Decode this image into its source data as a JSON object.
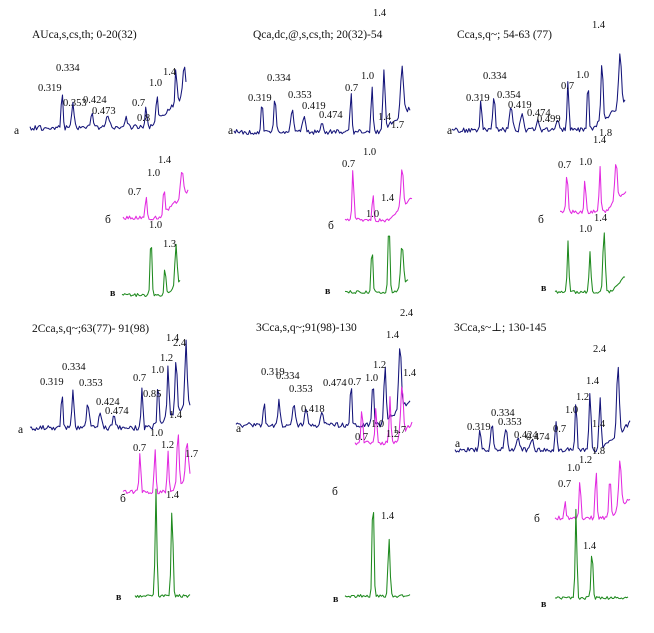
{
  "colors": {
    "a": "#15157a",
    "b": "#e22be0",
    "v": "#1f8a1f"
  },
  "curve_label_text": {
    "a": "а",
    "b": "б",
    "v": "в"
  },
  "chart_data": [
    {
      "type": "line",
      "title": "AUca,s,cs,th; 0-20(32)",
      "series": [
        {
          "name": "а",
          "peaks": [
            "0.319",
            "0.334",
            "0.353",
            "0.424",
            "0.473",
            "0.7",
            "0.8",
            "1.0",
            "1.4"
          ]
        },
        {
          "name": "б",
          "peaks": [
            "0.7",
            "1.0",
            "1.4"
          ]
        },
        {
          "name": "в",
          "peaks": [
            "1.0",
            "1.3"
          ]
        }
      ]
    },
    {
      "type": "line",
      "title": "Qca,dc,@,s,cs,th; 20(32)-54",
      "series": [
        {
          "name": "а",
          "peaks": [
            "0.319",
            "0.334",
            "0.353",
            "0.419",
            "0.474",
            "0.7",
            "1.0",
            "1.4"
          ]
        },
        {
          "name": "б",
          "peaks": [
            "0.7",
            "1.0",
            "1.4",
            "1.7"
          ]
        },
        {
          "name": "в",
          "peaks": [
            "1.0",
            "1.4"
          ]
        }
      ]
    },
    {
      "type": "line",
      "title": "Cca,s,q~; 54-63 (77)",
      "series": [
        {
          "name": "а",
          "peaks": [
            "0.319",
            "0.334",
            "0.354",
            "0.419",
            "0.474",
            "0.499",
            "0.7",
            "1.0",
            "1.4"
          ]
        },
        {
          "name": "б",
          "peaks": [
            "0.7",
            "1.0",
            "1.4",
            "1.8"
          ]
        },
        {
          "name": "в",
          "peaks": [
            "1.0",
            "1.4"
          ]
        }
      ]
    },
    {
      "type": "line",
      "title": "2Cca,s,q~;63(77)- 91(98)",
      "series": [
        {
          "name": "а",
          "peaks": [
            "0.319",
            "0.334",
            "0.353",
            "0.424",
            "0.474",
            "0.7",
            "0.85",
            "1.0",
            "1.2",
            "1.4",
            "2.4"
          ]
        },
        {
          "name": "б",
          "peaks": [
            "0.7",
            "1.0",
            "1.2",
            "1.4",
            "1.7"
          ]
        },
        {
          "name": "в",
          "peaks": [
            "1.4"
          ]
        }
      ]
    },
    {
      "type": "line",
      "title": "3Cca,s,q~;91(98)-130",
      "series": [
        {
          "name": "а",
          "peaks": [
            "0.319",
            "0.334",
            "0.353",
            "0.418",
            "0.474",
            "0.7",
            "1.0",
            "1.2",
            "1.4",
            "2.4"
          ]
        },
        {
          "name": "б",
          "peaks": [
            "0.7",
            "1.0",
            "1.2",
            "1.4",
            "1.7"
          ]
        },
        {
          "name": "в",
          "peaks": [
            "1.4"
          ]
        }
      ]
    },
    {
      "type": "line",
      "title": "3Cca,s~⊥; 130-145",
      "series": [
        {
          "name": "а",
          "peaks": [
            "0.319",
            "0.334",
            "0.353",
            "0.424",
            "0.474",
            "0.7",
            "1.0",
            "1.2",
            "1.4",
            "2.4"
          ]
        },
        {
          "name": "б",
          "peaks": [
            "0.7",
            "1.0",
            "1.2",
            "1.4",
            "1.8"
          ]
        },
        {
          "name": "в",
          "peaks": [
            "1.4"
          ]
        }
      ]
    }
  ]
}
